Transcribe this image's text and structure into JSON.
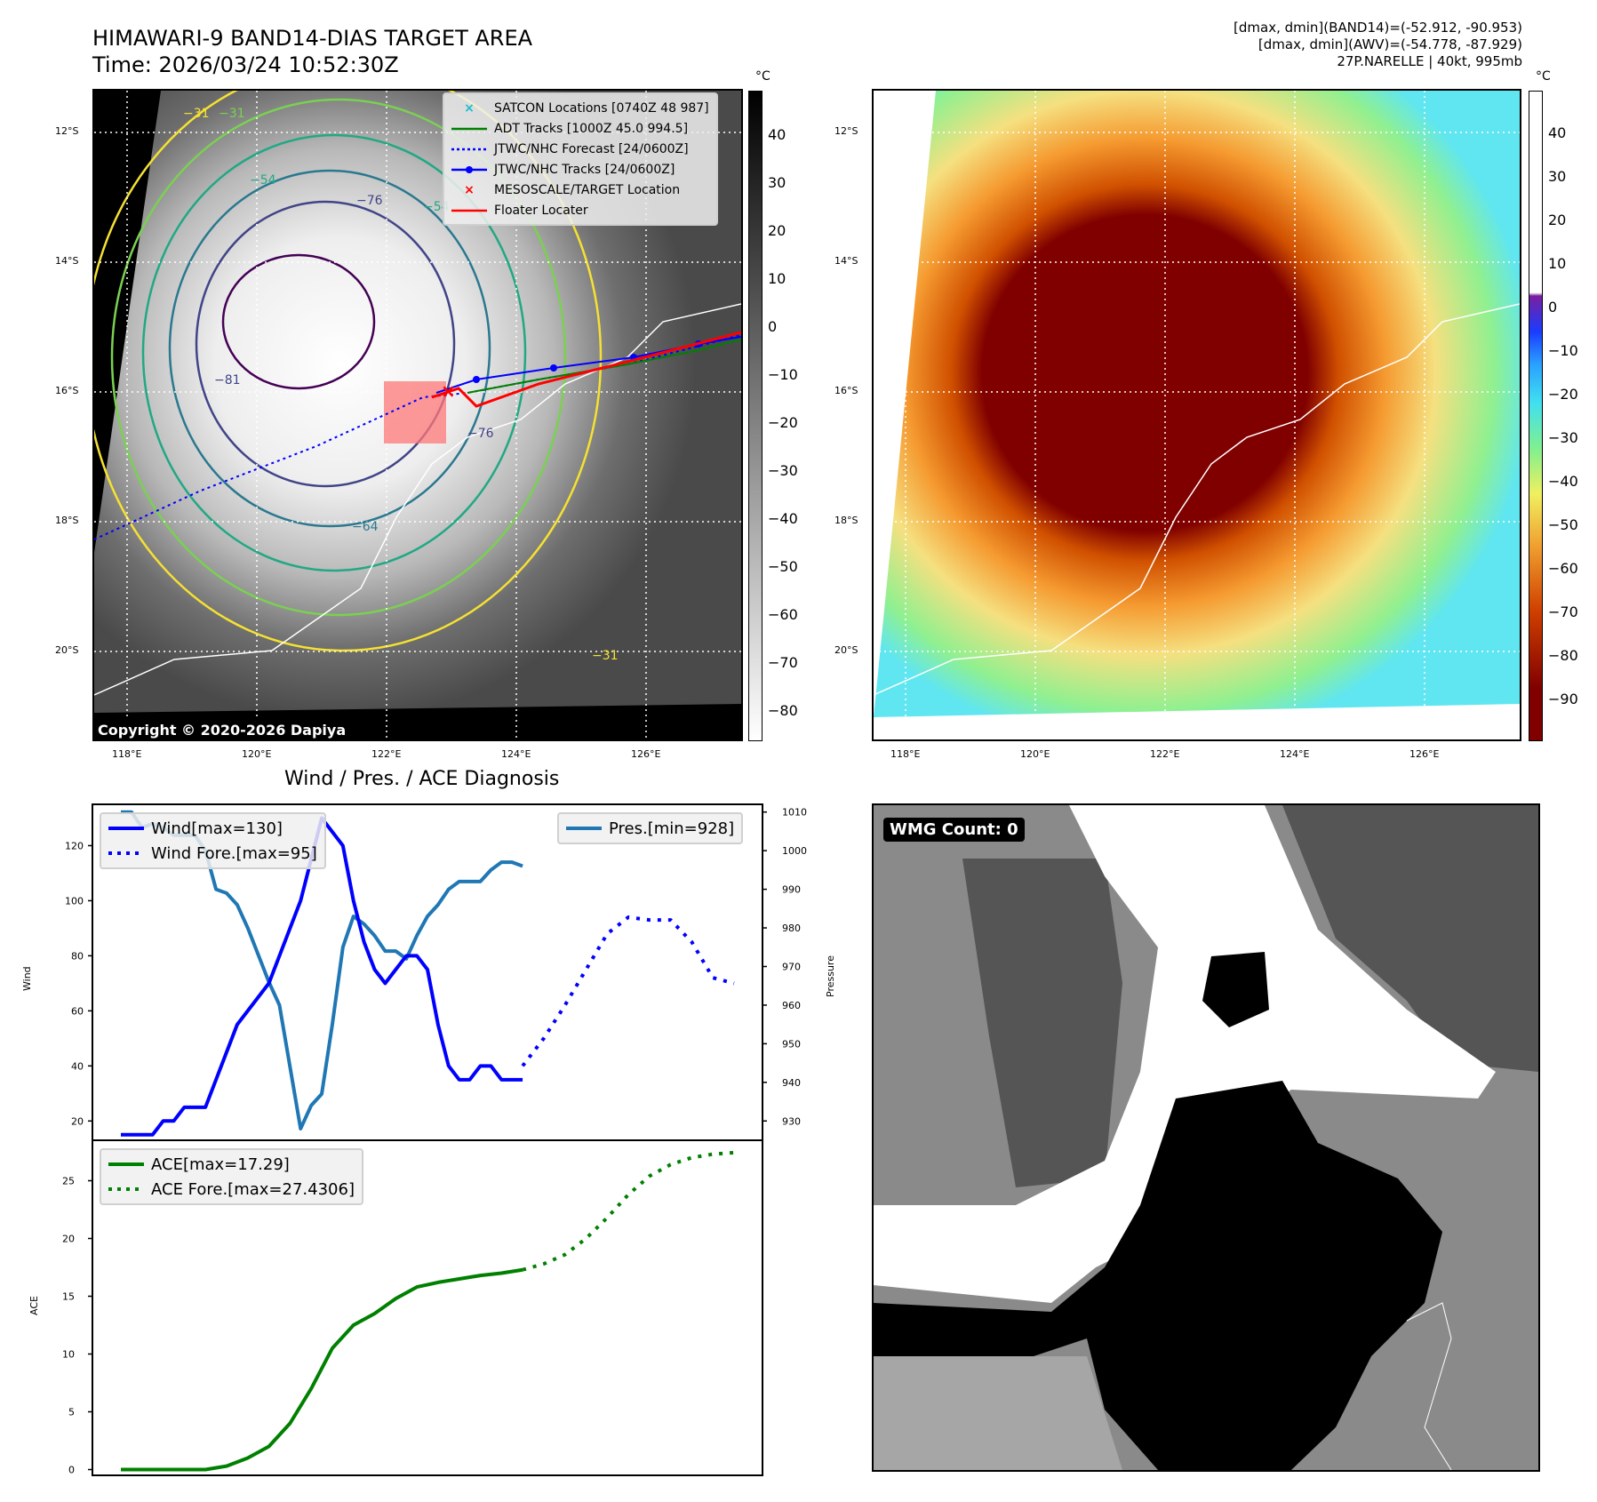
{
  "header": {
    "title_line1": "HIMAWARI-9 BAND14-DIAS TARGET AREA",
    "title_line2": "Time: 2026/03/24 10:52:30Z",
    "right_line1": "[dmax, dmin](BAND14)=(-52.912, -90.953)",
    "right_line2": "[dmax, dmin](AWV)=(-54.778, -87.929)",
    "right_line3": "27P.NARELLE | 40kt, 995mb"
  },
  "map_left": {
    "lat_labels": [
      "12°S",
      "14°S",
      "16°S",
      "18°S",
      "20°S"
    ],
    "lon_labels": [
      "118°E",
      "120°E",
      "122°E",
      "124°E",
      "126°E"
    ],
    "colorbar_unit": "°C",
    "colorbar_ticks": [
      "40",
      "30",
      "20",
      "10",
      "0",
      "−10",
      "−20",
      "−30",
      "−40",
      "−50",
      "−60",
      "−70",
      "−80"
    ],
    "contour_labels": [
      "−31",
      "−31",
      "−54",
      "−54",
      "−76",
      "−76",
      "−81",
      "−64",
      "−31"
    ],
    "legend": [
      {
        "label": "SATCON Locations [0740Z 48 987]",
        "symbol": "x-cyan",
        "color": "#17becf"
      },
      {
        "label": "ADT Tracks [1000Z 45.0 994.5]",
        "symbol": "line-solid",
        "color": "#008000"
      },
      {
        "label": "JTWC/NHC Forecast [24/0600Z]",
        "symbol": "line-dotted",
        "color": "#0000ff"
      },
      {
        "label": "JTWC/NHC Tracks [24/0600Z]",
        "symbol": "line-dot-marker",
        "color": "#0000ff"
      },
      {
        "label": "MESOSCALE/TARGET Location",
        "symbol": "x-red",
        "color": "#ff0000"
      },
      {
        "label": "Floater Locater",
        "symbol": "line-solid",
        "color": "#ff0000"
      }
    ],
    "copyright": "Copyright © 2020-2026 Dapiya"
  },
  "map_right": {
    "lat_labels": [
      "12°S",
      "14°S",
      "16°S",
      "18°S",
      "20°S"
    ],
    "lon_labels": [
      "118°E",
      "120°E",
      "122°E",
      "124°E",
      "126°E"
    ],
    "colorbar_unit": "°C",
    "colorbar_ticks": [
      "40",
      "30",
      "20",
      "10",
      "0",
      "−10",
      "−20",
      "−30",
      "−40",
      "−50",
      "−60",
      "−70",
      "−80",
      "−90"
    ]
  },
  "wmg": {
    "badge": "WMG Count: 0"
  },
  "chart_data": [
    {
      "type": "line",
      "title": "Wind / Pres. / ACE Diagnosis",
      "ylabel": "Wind",
      "ylabel_right": "Pressure",
      "ylim": [
        13,
        135
      ],
      "ylim_right": [
        925,
        1012
      ],
      "yticks": [
        20,
        40,
        60,
        80,
        100,
        120
      ],
      "yticks_right": [
        930,
        940,
        950,
        960,
        970,
        980,
        990,
        1000,
        1010
      ],
      "x": [
        0,
        1,
        2,
        3,
        4,
        5,
        6,
        7,
        8,
        9,
        10,
        11,
        12,
        13,
        14,
        15,
        16,
        17,
        18,
        19,
        20,
        21,
        22,
        23,
        24,
        25,
        26,
        27,
        28,
        29,
        30,
        31,
        32,
        33,
        34,
        35,
        36,
        37,
        38
      ],
      "series": [
        {
          "name": "Wind[max=130]",
          "style": "solid",
          "color": "#0000ff",
          "x": [
            0,
            1,
            2,
            3,
            4,
            5,
            6,
            7,
            8,
            9,
            10,
            11,
            12,
            13,
            14,
            15,
            16,
            17,
            18,
            19,
            20,
            21,
            22,
            23,
            24,
            25,
            26,
            27,
            28,
            29,
            30,
            31,
            32,
            33,
            34,
            35,
            36,
            37,
            38
          ],
          "values": [
            15,
            15,
            15,
            15,
            20,
            20,
            25,
            25,
            25,
            35,
            45,
            55,
            60,
            65,
            70,
            80,
            90,
            100,
            115,
            130,
            125,
            120,
            100,
            85,
            75,
            70,
            75,
            80,
            80,
            75,
            55,
            40,
            35,
            35,
            40,
            40,
            35,
            35,
            35
          ]
        },
        {
          "name": "Wind Fore.[max=95]",
          "style": "dotted",
          "color": "#0000ff",
          "x": [
            38,
            40,
            42,
            44,
            46,
            48,
            50,
            52,
            54,
            56,
            58
          ],
          "values": [
            40,
            50,
            62,
            75,
            88,
            94,
            93,
            93,
            85,
            72,
            70
          ]
        },
        {
          "name": "Pres.[min=928]",
          "style": "solid",
          "color": "#1f77b4",
          "axis": "right",
          "x": [
            0,
            1,
            2,
            3,
            4,
            5,
            6,
            7,
            8,
            9,
            10,
            11,
            12,
            13,
            14,
            15,
            16,
            17,
            18,
            19,
            20,
            21,
            22,
            23,
            24,
            25,
            26,
            27,
            28,
            29,
            30,
            31,
            32,
            33,
            34,
            35,
            36,
            37,
            38
          ],
          "values": [
            1010,
            1010,
            1006,
            1007,
            1006,
            1004,
            1004,
            1004,
            1000,
            990,
            989,
            986,
            980,
            973,
            966,
            960,
            944,
            928,
            934,
            937,
            955,
            975,
            983,
            981,
            978,
            974,
            974,
            972,
            978,
            983,
            986,
            990,
            992,
            992,
            992,
            995,
            997,
            997,
            996
          ]
        }
      ]
    },
    {
      "type": "line",
      "ylabel": "ACE",
      "ylim": [
        -0.5,
        28.5
      ],
      "yticks": [
        0,
        5,
        10,
        15,
        20,
        25
      ],
      "series": [
        {
          "name": "ACE[max=17.29]",
          "style": "solid",
          "color": "#008000",
          "x": [
            0,
            2,
            4,
            6,
            8,
            10,
            12,
            14,
            16,
            18,
            20,
            22,
            24,
            26,
            28,
            30,
            32,
            34,
            36,
            38
          ],
          "values": [
            0,
            0,
            0,
            0,
            0,
            0.3,
            1.0,
            2.0,
            4.0,
            7.0,
            10.5,
            12.5,
            13.5,
            14.8,
            15.8,
            16.2,
            16.5,
            16.8,
            17.0,
            17.29
          ]
        },
        {
          "name": "ACE Fore.[max=27.4306]",
          "style": "dotted",
          "color": "#008000",
          "x": [
            38,
            40,
            42,
            44,
            46,
            48,
            50,
            52,
            54,
            56,
            58
          ],
          "values": [
            17.29,
            17.8,
            18.6,
            20.0,
            21.8,
            23.8,
            25.4,
            26.4,
            27.0,
            27.3,
            27.4306
          ]
        }
      ]
    }
  ]
}
